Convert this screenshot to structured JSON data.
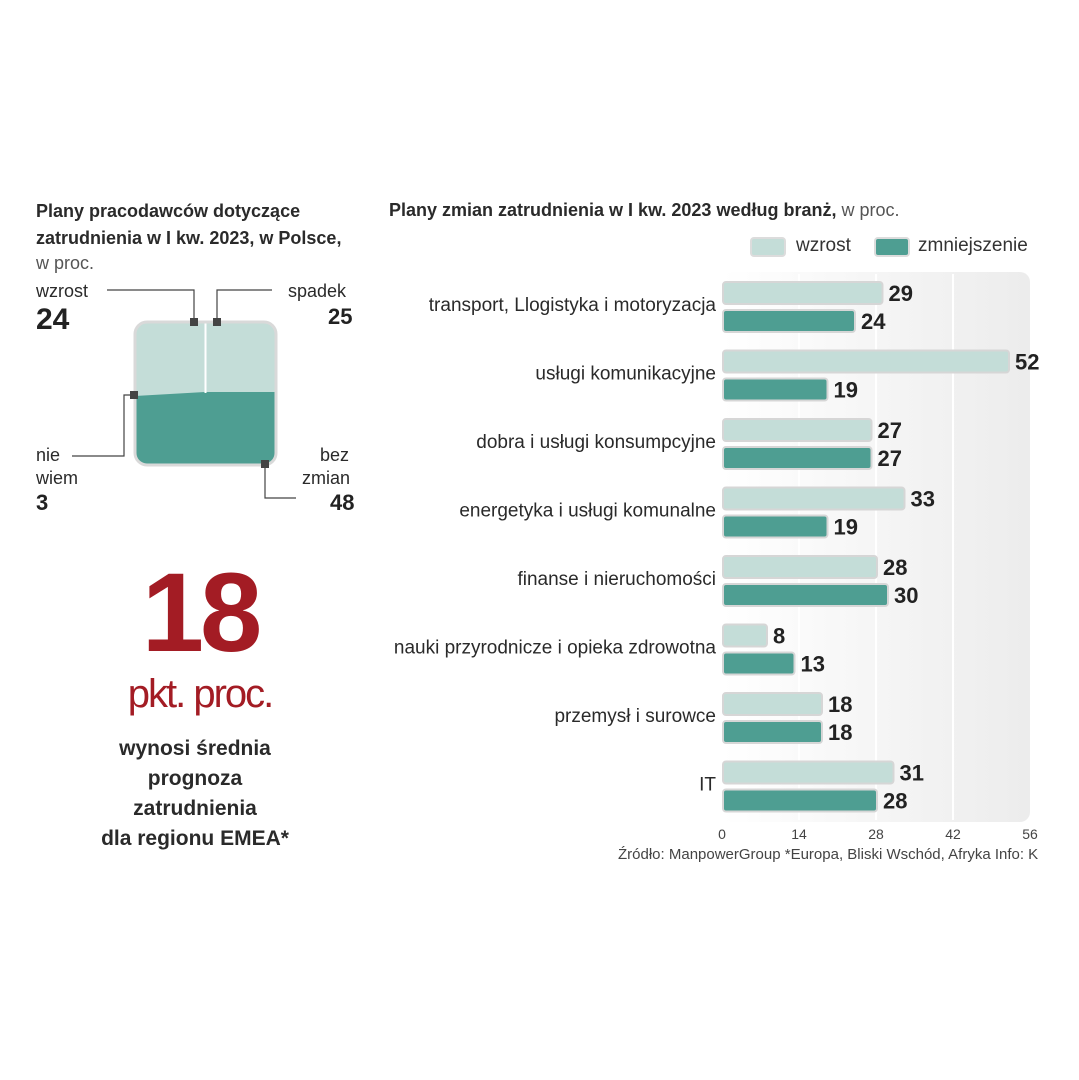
{
  "left": {
    "title": "Plany pracodawców dotyczące zatrudnienia w I kw. 2023, w Polsce,",
    "unit": "w proc.",
    "items": [
      {
        "label": "wzrost",
        "value": "24"
      },
      {
        "label": "spadek",
        "value": "25"
      },
      {
        "label": "nie wiem",
        "label_line1": "nie",
        "label_line2": "wiem",
        "value": "3"
      },
      {
        "label": "bez zmian",
        "label_line1": "bez",
        "label_line2": "zmian",
        "value": "48"
      }
    ]
  },
  "emea": {
    "number": "18",
    "unit": "pkt. proc.",
    "line1": "wynosi średnia",
    "line2": "prognoza",
    "line3": "zatrudnienia",
    "line4": "dla regionu EMEA*"
  },
  "chart_data": {
    "type": "bar",
    "orientation": "horizontal",
    "title": "Plany zmian zatrudnienia w I kw. 2023  według branż,",
    "title_unit": "w proc.",
    "categories": [
      "transport, Llogistyka i motoryzacja",
      "usługi komunikacyjne",
      "dobra i usługi konsumpcyjne",
      "energetyka i usługi komunalne",
      "finanse i nieruchomości",
      "nauki przyrodnicze i opieka zdrowotna",
      "przemysł i surowce",
      "IT"
    ],
    "series": [
      {
        "name": "wzrost",
        "color": "#c4ddd8",
        "values": [
          29,
          52,
          27,
          33,
          28,
          8,
          18,
          31
        ]
      },
      {
        "name": "zmniejszenie",
        "color": "#4e9e92",
        "values": [
          24,
          19,
          27,
          19,
          30,
          13,
          18,
          28
        ]
      }
    ],
    "xlim": [
      0,
      56
    ],
    "xticks": [
      0,
      14,
      28,
      42,
      56
    ],
    "grid": true,
    "legend": "top-right"
  },
  "source": "Źródło: ManpowerGroup *Europa, Bliski Wschód, Afryka  Info: K",
  "colors": {
    "light": "#c4ddd8",
    "dark": "#4e9e92",
    "accent": "#a31c24"
  }
}
